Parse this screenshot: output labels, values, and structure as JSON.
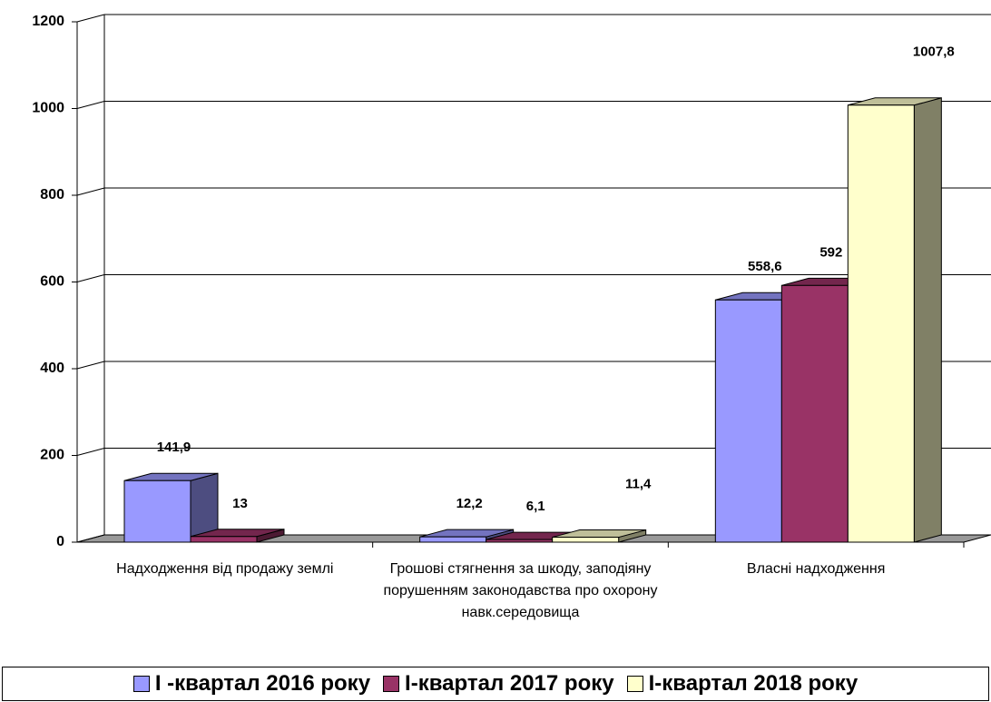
{
  "chart_data": {
    "type": "bar3d",
    "categories": [
      "Надходження від продажу землі",
      "Грошові стягнення за шкоду, заподіяну порушенням законодавства про охорону навк.середовища",
      "Власні надходження"
    ],
    "series": [
      {
        "name": "І -квартал 2016 року",
        "color": "#9999ff",
        "values": [
          141.9,
          12.2,
          558.6
        ],
        "value_labels": [
          "141,9",
          "12,2",
          "558,6"
        ]
      },
      {
        "name": "І-квартал 2017 року",
        "color": "#993366",
        "values": [
          13,
          6.1,
          592
        ],
        "value_labels": [
          "13",
          "6,1",
          "592"
        ]
      },
      {
        "name": "І-квартал 2018 року",
        "color": "#ffffcc",
        "values": [
          null,
          11.4,
          1007.8
        ],
        "value_labels": [
          null,
          "11,4",
          "1007,8"
        ]
      }
    ],
    "ylim": [
      0,
      1200
    ],
    "yticks": [
      0,
      200,
      400,
      600,
      800,
      1000,
      1200
    ],
    "grid": true,
    "legend": "bottom"
  }
}
